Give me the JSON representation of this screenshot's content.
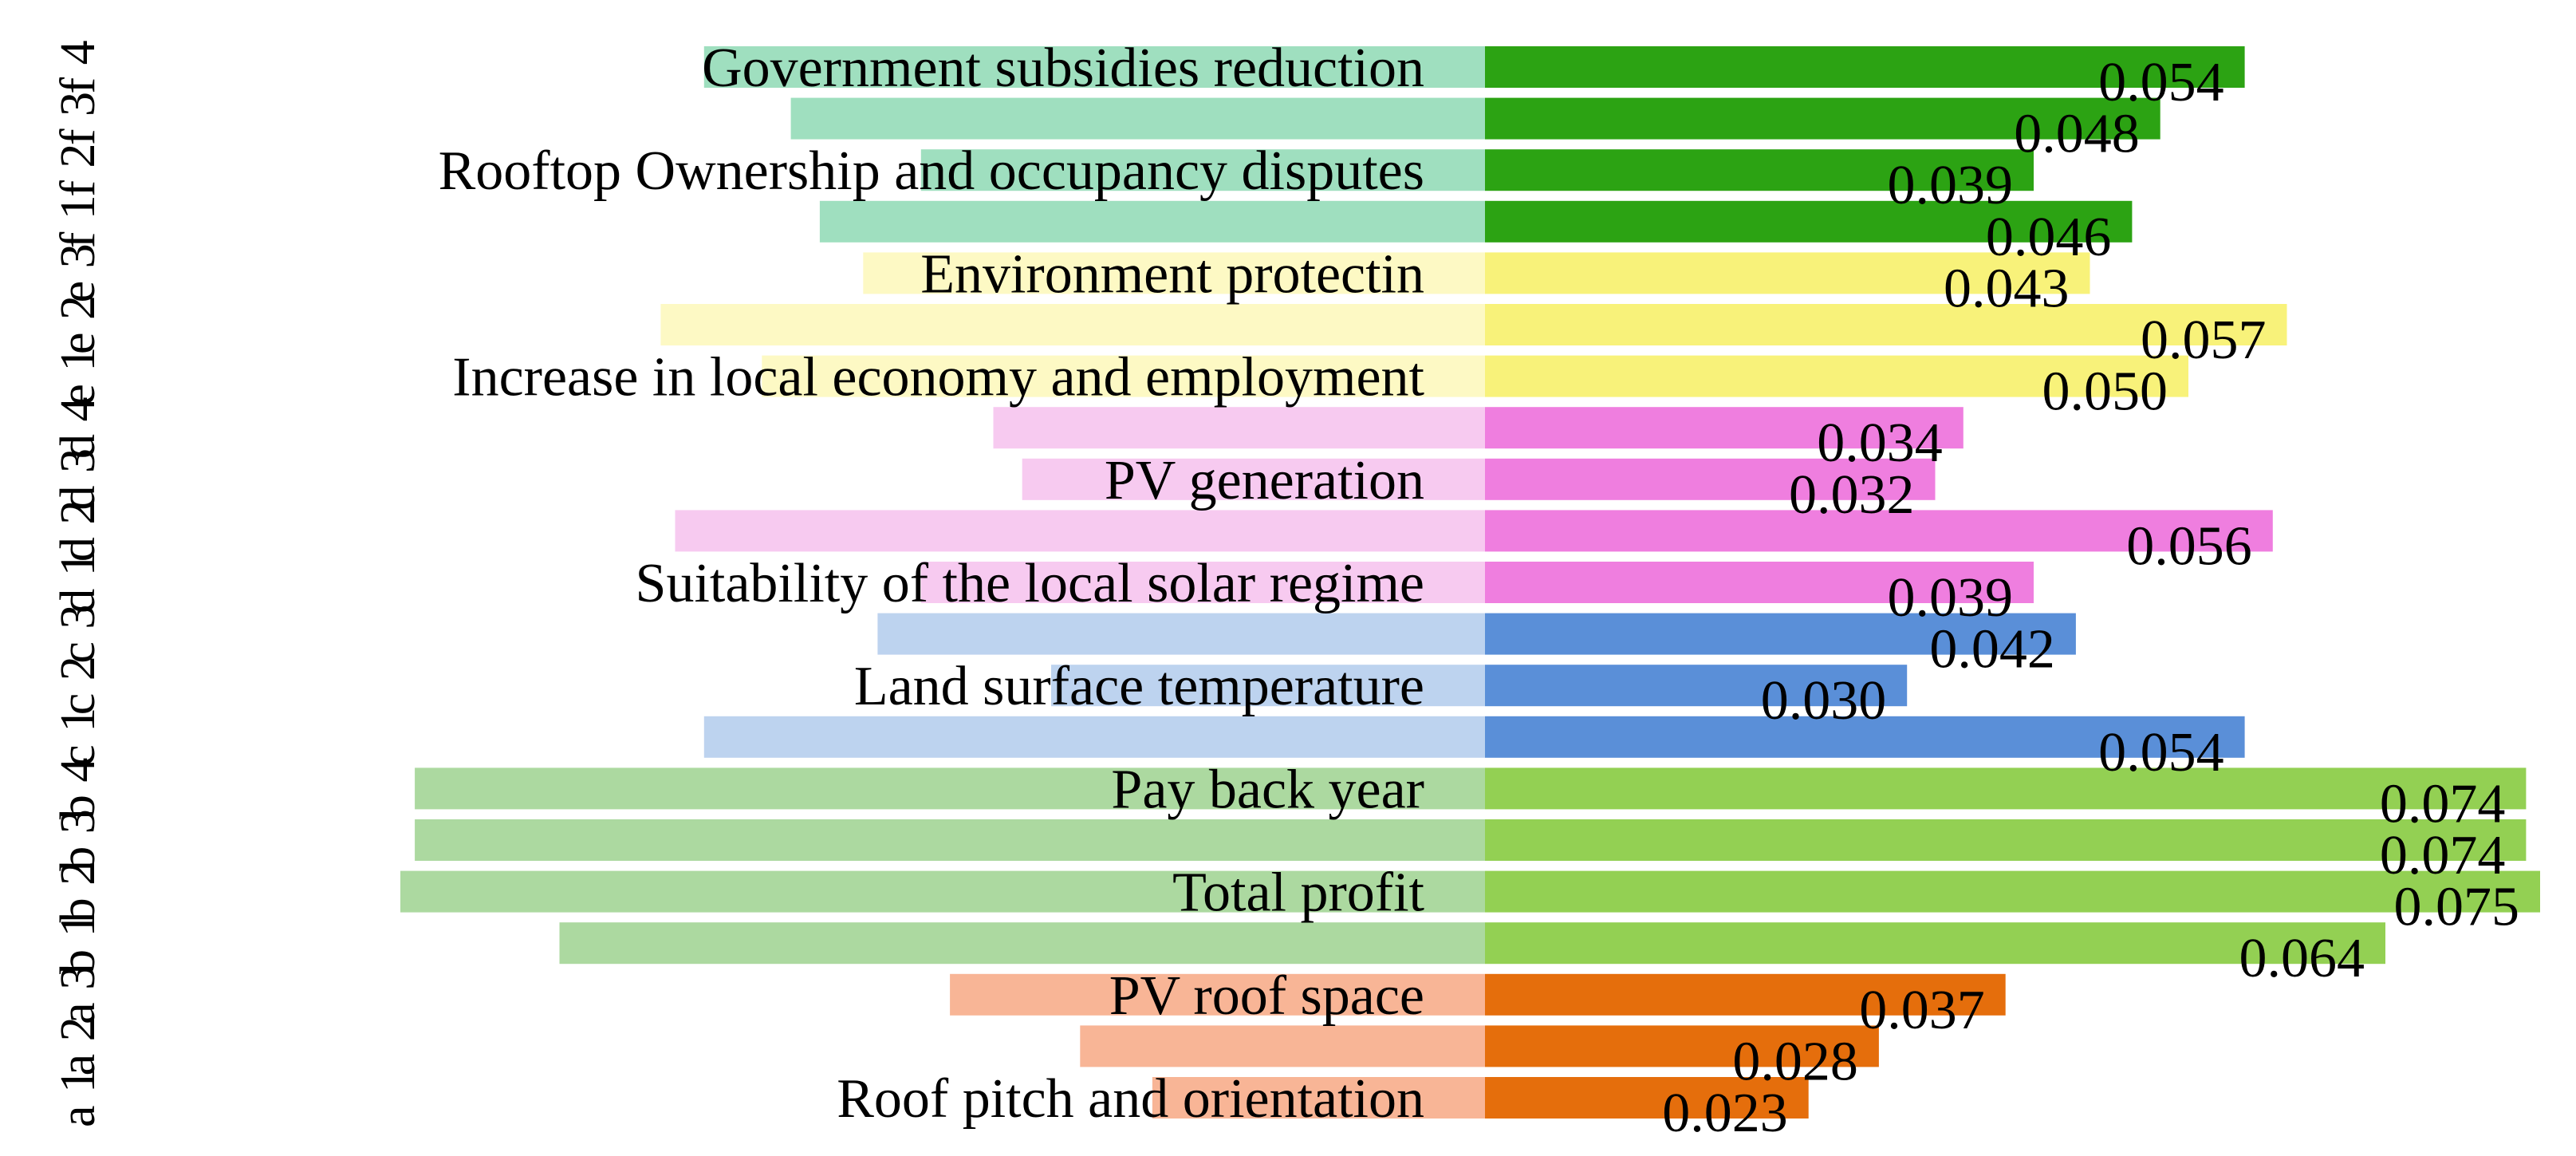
{
  "chart_data": {
    "type": "bar",
    "orientation": "horizontal-mirrored",
    "title": "",
    "xlabel": "",
    "ylabel": "",
    "xlim": [
      0,
      0.075
    ],
    "grid": false,
    "legend": "none",
    "rows": [
      {
        "code": "f 4",
        "label": "Government subsidies reduction",
        "value": 0.054,
        "value_label": "0.054",
        "light_color": "#9fdfbf",
        "dark_color": "#2ca313"
      },
      {
        "code": "f 3",
        "label": "",
        "value": 0.048,
        "value_label": "0.048",
        "light_color": "#9fdfbf",
        "dark_color": "#2ca313"
      },
      {
        "code": "f 2",
        "label": "Rooftop Ownership and occupancy disputes",
        "value": 0.039,
        "value_label": "0.039",
        "light_color": "#9fdfbf",
        "dark_color": "#2ca313"
      },
      {
        "code": "f 1",
        "label": "",
        "value": 0.046,
        "value_label": "0.046",
        "light_color": "#9fdfbf",
        "dark_color": "#2ca313"
      },
      {
        "code": "e 3",
        "label": "Environment protectin",
        "value": 0.043,
        "value_label": "0.043",
        "light_color": "#fdf9c4",
        "dark_color": "#f8f27a"
      },
      {
        "code": "e 2",
        "label": "",
        "value": 0.057,
        "value_label": "0.057",
        "light_color": "#fdf9c4",
        "dark_color": "#f8f27a"
      },
      {
        "code": "e 1",
        "label": "Increase in local economy and employment",
        "value": 0.05,
        "value_label": "0.050",
        "light_color": "#fdf9c4",
        "dark_color": "#f8f27a"
      },
      {
        "code": "d 4",
        "label": "",
        "value": 0.034,
        "value_label": "0.034",
        "light_color": "#f7caf0",
        "dark_color": "#ef7edf"
      },
      {
        "code": "d 3",
        "label": "PV generation",
        "value": 0.032,
        "value_label": "0.032",
        "light_color": "#f7caf0",
        "dark_color": "#ef7edf"
      },
      {
        "code": "d 2",
        "label": "",
        "value": 0.056,
        "value_label": "0.056",
        "light_color": "#f7caf0",
        "dark_color": "#ef7edf"
      },
      {
        "code": "d 1",
        "label": "Suitability of the local solar regime",
        "value": 0.039,
        "value_label": "0.039",
        "light_color": "#f7caf0",
        "dark_color": "#ef7edf"
      },
      {
        "code": "c 3",
        "label": "",
        "value": 0.042,
        "value_label": "0.042",
        "light_color": "#bdd3ef",
        "dark_color": "#5a8fd8"
      },
      {
        "code": "c 2",
        "label": "Land surface temperature",
        "value": 0.03,
        "value_label": "0.030",
        "light_color": "#bdd3ef",
        "dark_color": "#5a8fd8"
      },
      {
        "code": "c 1",
        "label": "",
        "value": 0.054,
        "value_label": "0.054",
        "light_color": "#bdd3ef",
        "dark_color": "#5a8fd8"
      },
      {
        "code": "b 4",
        "label": "Pay back year",
        "value": 0.074,
        "value_label": "0.074",
        "light_color": "#acd9a0",
        "dark_color": "#93d053"
      },
      {
        "code": "b 3",
        "label": "",
        "value": 0.074,
        "value_label": "0.074",
        "light_color": "#acd9a0",
        "dark_color": "#93d053"
      },
      {
        "code": "b 2",
        "label": "Total profit",
        "value": 0.075,
        "value_label": "0.075",
        "light_color": "#acd9a0",
        "dark_color": "#93d053"
      },
      {
        "code": "b 1",
        "label": "",
        "value": 0.064,
        "value_label": "0.064",
        "light_color": "#acd9a0",
        "dark_color": "#93d053"
      },
      {
        "code": "a 3",
        "label": "PV roof space",
        "value": 0.037,
        "value_label": "0.037",
        "light_color": "#f8b596",
        "dark_color": "#e56e0c"
      },
      {
        "code": "a 2",
        "label": "",
        "value": 0.028,
        "value_label": "0.028",
        "light_color": "#f8b596",
        "dark_color": "#e56e0c"
      },
      {
        "code": "a 1",
        "label": "Roof pitch and orientation",
        "value": 0.023,
        "value_label": "0.023",
        "light_color": "#f8b596",
        "dark_color": "#e56e0c"
      }
    ]
  }
}
